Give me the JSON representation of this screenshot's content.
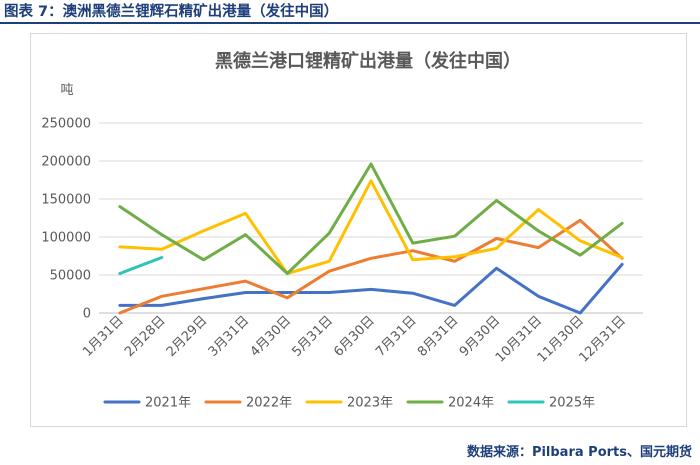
{
  "caption": "图表 7：澳洲黑德兰锂辉石精矿出港量（发往中国）",
  "source": "数据来源：Pilbara Ports、国元期货",
  "chart_data": {
    "type": "line",
    "title": "黑德兰港口锂精矿出港量（发往中国）",
    "ylabel": "吨",
    "xlabel": "",
    "categories": [
      "1月31日",
      "2月28日",
      "2月29日",
      "3月31日",
      "4月30日",
      "5月31日",
      "6月30日",
      "7月31日",
      "8月31日",
      "9月30日",
      "10月31日",
      "11月30日",
      "12月31日"
    ],
    "ylim": [
      0,
      250000
    ],
    "yticks": [
      0,
      50000,
      100000,
      150000,
      200000,
      250000
    ],
    "ytick_labels": [
      "0",
      "50000",
      "100000",
      "150000",
      "200000",
      "250000"
    ],
    "grid": true,
    "legend_position": "bottom",
    "series": [
      {
        "name": "2021年",
        "color": "#4472c4",
        "values": [
          10000,
          10000,
          19000,
          27000,
          27000,
          27000,
          31000,
          26000,
          10000,
          59000,
          22000,
          0,
          64000
        ]
      },
      {
        "name": "2022年",
        "color": "#ed7d31",
        "values": [
          0,
          22000,
          32000,
          42000,
          20000,
          55000,
          72000,
          82000,
          68000,
          98000,
          86000,
          122000,
          72000
        ]
      },
      {
        "name": "2023年",
        "color": "#ffc000",
        "values": [
          87000,
          84000,
          108000,
          131000,
          52000,
          68000,
          174000,
          70000,
          74000,
          85000,
          136000,
          95000,
          73000
        ]
      },
      {
        "name": "2024年",
        "color": "#70ad47",
        "values": [
          140000,
          103000,
          70000,
          103000,
          52000,
          105000,
          196000,
          92000,
          101000,
          148000,
          108000,
          76000,
          118000
        ]
      },
      {
        "name": "2025年",
        "color": "#2ec4b6",
        "values": [
          52000,
          73000,
          null,
          null,
          null,
          null,
          null,
          null,
          null,
          null,
          null,
          null,
          null
        ]
      }
    ]
  }
}
